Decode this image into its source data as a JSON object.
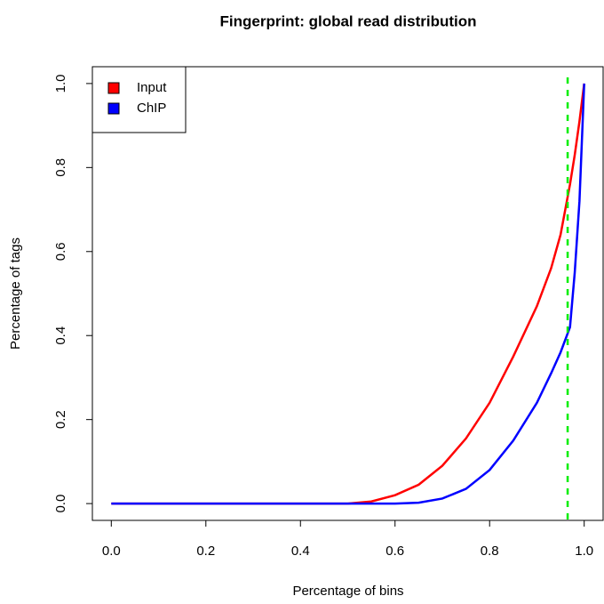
{
  "chart_data": {
    "type": "line",
    "title": "Fingerprint: global read distribution",
    "x_label": "Percentage of bins",
    "y_label": "Percentage of tags",
    "x": [
      0,
      0.5,
      0.55,
      0.6,
      0.65,
      0.7,
      0.75,
      0.8,
      0.85,
      0.9,
      0.93,
      0.95,
      0.97,
      0.98,
      0.99,
      1.0
    ],
    "series": [
      {
        "name": "Input",
        "color": "#ff0000",
        "values": [
          0,
          0,
          0.005,
          0.02,
          0.045,
          0.09,
          0.155,
          0.24,
          0.35,
          0.47,
          0.56,
          0.64,
          0.76,
          0.83,
          0.91,
          1.0
        ]
      },
      {
        "name": "ChIP",
        "color": "#0000ff",
        "values": [
          0,
          0,
          0,
          0,
          0.002,
          0.012,
          0.035,
          0.08,
          0.15,
          0.24,
          0.31,
          0.36,
          0.42,
          0.55,
          0.72,
          1.0
        ]
      }
    ],
    "vline": {
      "value": 0.965,
      "color": "#00ee00"
    },
    "xlim": [
      -0.04,
      1.04
    ],
    "ylim": [
      -0.04,
      1.04
    ],
    "xticks": [
      {
        "value": 0,
        "label": "0.0"
      },
      0.2,
      0.4,
      0.6,
      0.8,
      {
        "value": 1,
        "label": "1.0"
      }
    ],
    "yticks": [
      {
        "value": 0,
        "label": "0.0"
      },
      0.2,
      0.4,
      0.6,
      0.8,
      {
        "value": 1,
        "label": "1.0"
      }
    ],
    "grid": false,
    "legend": "top-left"
  }
}
